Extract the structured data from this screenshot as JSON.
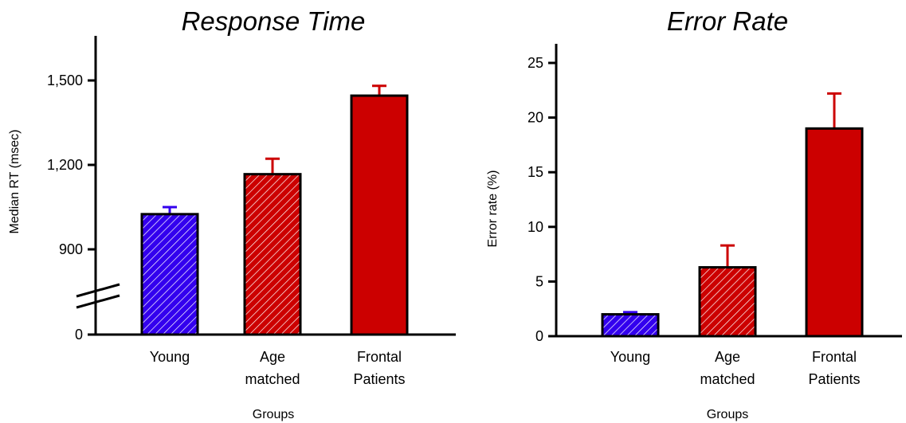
{
  "chart_data": [
    {
      "type": "bar",
      "title": "Response Time",
      "xlabel": "Groups",
      "ylabel": "Median RT (msec)",
      "categories": [
        {
          "line1": "Young",
          "line2": ""
        },
        {
          "line1": "Age",
          "line2": "matched"
        },
        {
          "line1": "Frontal",
          "line2": "Patients"
        }
      ],
      "values": [
        1025,
        1167,
        1446
      ],
      "error": [
        25,
        55,
        35
      ],
      "yticks": [
        "0",
        "900",
        "1,200",
        "1,500"
      ],
      "ylim": [
        0,
        1650
      ],
      "axis_break": true,
      "grid": false,
      "colors": [
        "#3300ee",
        "#cc0000",
        "#cc0000"
      ],
      "patterns": [
        "hatched",
        "hatched",
        "solid"
      ]
    },
    {
      "type": "bar",
      "title": "Error Rate",
      "xlabel": "Groups",
      "ylabel": "Error rate (%)",
      "categories": [
        {
          "line1": "Young",
          "line2": ""
        },
        {
          "line1": "Age",
          "line2": "matched"
        },
        {
          "line1": "Frontal",
          "line2": "Patients"
        }
      ],
      "values": [
        2.0,
        6.3,
        19.0
      ],
      "error": [
        0.2,
        2.0,
        3.2
      ],
      "yticks": [
        "0",
        "5",
        "10",
        "15",
        "20",
        "25"
      ],
      "ylim": [
        0,
        26
      ],
      "axis_break": false,
      "grid": false,
      "colors": [
        "#3300ee",
        "#cc0000",
        "#cc0000"
      ],
      "patterns": [
        "hatched",
        "hatched",
        "solid"
      ]
    }
  ]
}
